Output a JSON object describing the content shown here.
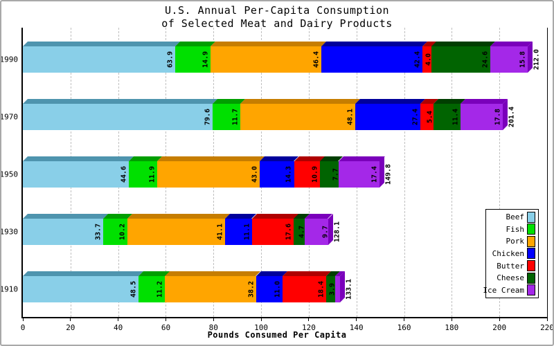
{
  "chart_data": {
    "type": "bar",
    "orientation": "horizontal-stacked",
    "title_lines": [
      "U.S. Annual Per-Capita Consumption",
      "of Selected Meat and Dairy Products"
    ],
    "xlabel": "Pounds Consumed Per Capita",
    "xlim": [
      0,
      220
    ],
    "x_ticks": [
      0,
      20,
      40,
      60,
      80,
      100,
      120,
      140,
      160,
      180,
      200,
      220
    ],
    "grid": "dashed-vertical",
    "legend_position": "right",
    "categories": [
      "1990",
      "1970",
      "1950",
      "1930",
      "1910"
    ],
    "series": [
      {
        "name": "Beef",
        "color": "#89CFE8",
        "dark": "#4E94AE",
        "values": [
          63.9,
          79.6,
          44.6,
          33.7,
          48.5
        ]
      },
      {
        "name": "Fish",
        "color": "#00E000",
        "dark": "#009E00",
        "values": [
          14.9,
          11.7,
          11.9,
          10.2,
          11.2
        ]
      },
      {
        "name": "Pork",
        "color": "#FFA500",
        "dark": "#C67D00",
        "values": [
          46.4,
          48.1,
          43.0,
          41.1,
          38.2
        ]
      },
      {
        "name": "Chicken",
        "color": "#0000FF",
        "dark": "#00009B",
        "values": [
          42.4,
          27.4,
          14.3,
          11.1,
          11.0
        ]
      },
      {
        "name": "Butter",
        "color": "#FF0000",
        "dark": "#AF0000",
        "values": [
          4.0,
          5.4,
          10.9,
          17.6,
          18.4
        ]
      },
      {
        "name": "Cheese",
        "color": "#016401",
        "dark": "#013E01",
        "values": [
          24.6,
          11.4,
          7.7,
          4.7,
          3.9
        ]
      },
      {
        "name": "Ice Cream",
        "color": "#A428E8",
        "dark": "#7A00BB",
        "values": [
          15.8,
          17.8,
          17.4,
          9.7,
          1.9
        ]
      }
    ],
    "totals": [
      "212.0",
      "201.4",
      "149.8",
      "128.1",
      "133.1"
    ],
    "value_label_min": 3,
    "axis_color": "#000000",
    "grid_color": "#BFBFBF"
  }
}
